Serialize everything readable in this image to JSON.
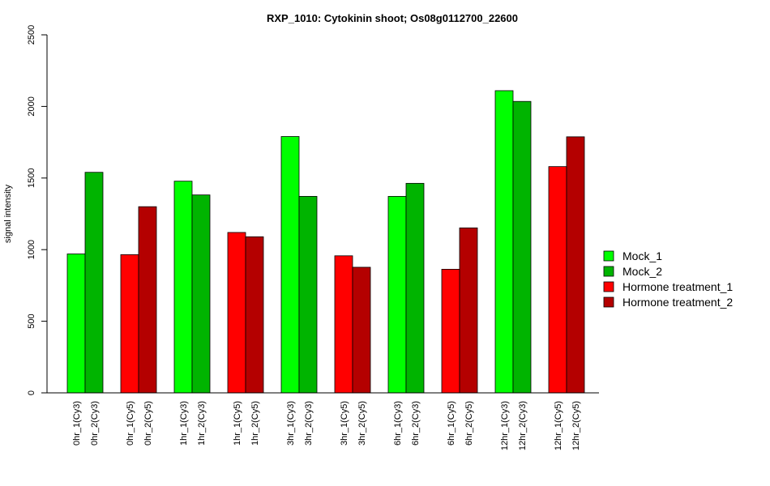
{
  "chart_data": {
    "type": "bar",
    "title": "RXP_1010: Cytokinin shoot; Os08g0112700_22600",
    "ylabel": "signal intensity",
    "xlabel": "",
    "ylim": [
      0,
      2500
    ],
    "yticks": [
      0,
      500,
      1000,
      1500,
      2000,
      2500
    ],
    "grid": false,
    "legend_position": "right",
    "legend": [
      {
        "name": "Mock_1",
        "color": "#00ff00"
      },
      {
        "name": "Mock_2",
        "color": "#00b400"
      },
      {
        "name": "Hormone treatment_1",
        "color": "#ff0000"
      },
      {
        "name": "Hormone treatment_2",
        "color": "#b40000"
      }
    ],
    "bars": [
      {
        "label": "0hr_1(Cy3)",
        "value": 970,
        "group": "Mock_1"
      },
      {
        "label": "0hr_2(Cy3)",
        "value": 1540,
        "group": "Mock_2"
      },
      {
        "label": "0hr_1(Cy5)",
        "value": 965,
        "group": "Hormone treatment_1"
      },
      {
        "label": "0hr_2(Cy5)",
        "value": 1300,
        "group": "Hormone treatment_2"
      },
      {
        "label": "1hr_1(Cy3)",
        "value": 1478,
        "group": "Mock_1"
      },
      {
        "label": "1hr_2(Cy3)",
        "value": 1382,
        "group": "Mock_2"
      },
      {
        "label": "1hr_1(Cy5)",
        "value": 1120,
        "group": "Hormone treatment_1"
      },
      {
        "label": "1hr_2(Cy5)",
        "value": 1090,
        "group": "Hormone treatment_2"
      },
      {
        "label": "3hr_1(Cy3)",
        "value": 1790,
        "group": "Mock_1"
      },
      {
        "label": "3hr_2(Cy3)",
        "value": 1372,
        "group": "Mock_2"
      },
      {
        "label": "3hr_1(Cy5)",
        "value": 957,
        "group": "Hormone treatment_1"
      },
      {
        "label": "3hr_2(Cy5)",
        "value": 877,
        "group": "Hormone treatment_2"
      },
      {
        "label": "6hr_1(Cy3)",
        "value": 1372,
        "group": "Mock_1"
      },
      {
        "label": "6hr_2(Cy3)",
        "value": 1463,
        "group": "Mock_2"
      },
      {
        "label": "6hr_1(Cy5)",
        "value": 863,
        "group": "Hormone treatment_1"
      },
      {
        "label": "6hr_2(Cy5)",
        "value": 1152,
        "group": "Hormone treatment_2"
      },
      {
        "label": "12hr_1(Cy3)",
        "value": 2110,
        "group": "Mock_1"
      },
      {
        "label": "12hr_2(Cy3)",
        "value": 2035,
        "group": "Mock_2"
      },
      {
        "label": "12hr_1(Cy5)",
        "value": 1580,
        "group": "Hormone treatment_1"
      },
      {
        "label": "12hr_2(Cy5)",
        "value": 1788,
        "group": "Hormone treatment_2"
      }
    ]
  }
}
